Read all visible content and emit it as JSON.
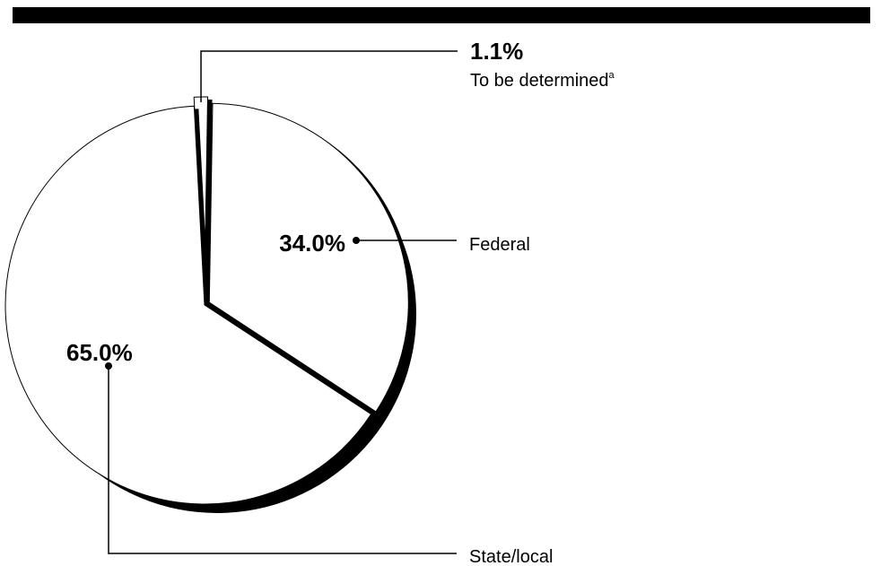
{
  "chart_data": {
    "type": "pie",
    "title": "",
    "slices": [
      {
        "label": "To be determined",
        "footnote": "a",
        "value": 1.1,
        "value_label": "1.1%"
      },
      {
        "label": "Federal",
        "value": 34.0,
        "value_label": "34.0%"
      },
      {
        "label": "State/local",
        "value": 65.0,
        "value_label": "65.0%"
      }
    ],
    "unit": "%",
    "style": "3D pie, white slices with black extruded edge, callout leader lines",
    "colors": {
      "slice_fill": "#ffffff",
      "outline": "#000000",
      "extrusion": "#000000",
      "top_bar": "#000000"
    }
  }
}
